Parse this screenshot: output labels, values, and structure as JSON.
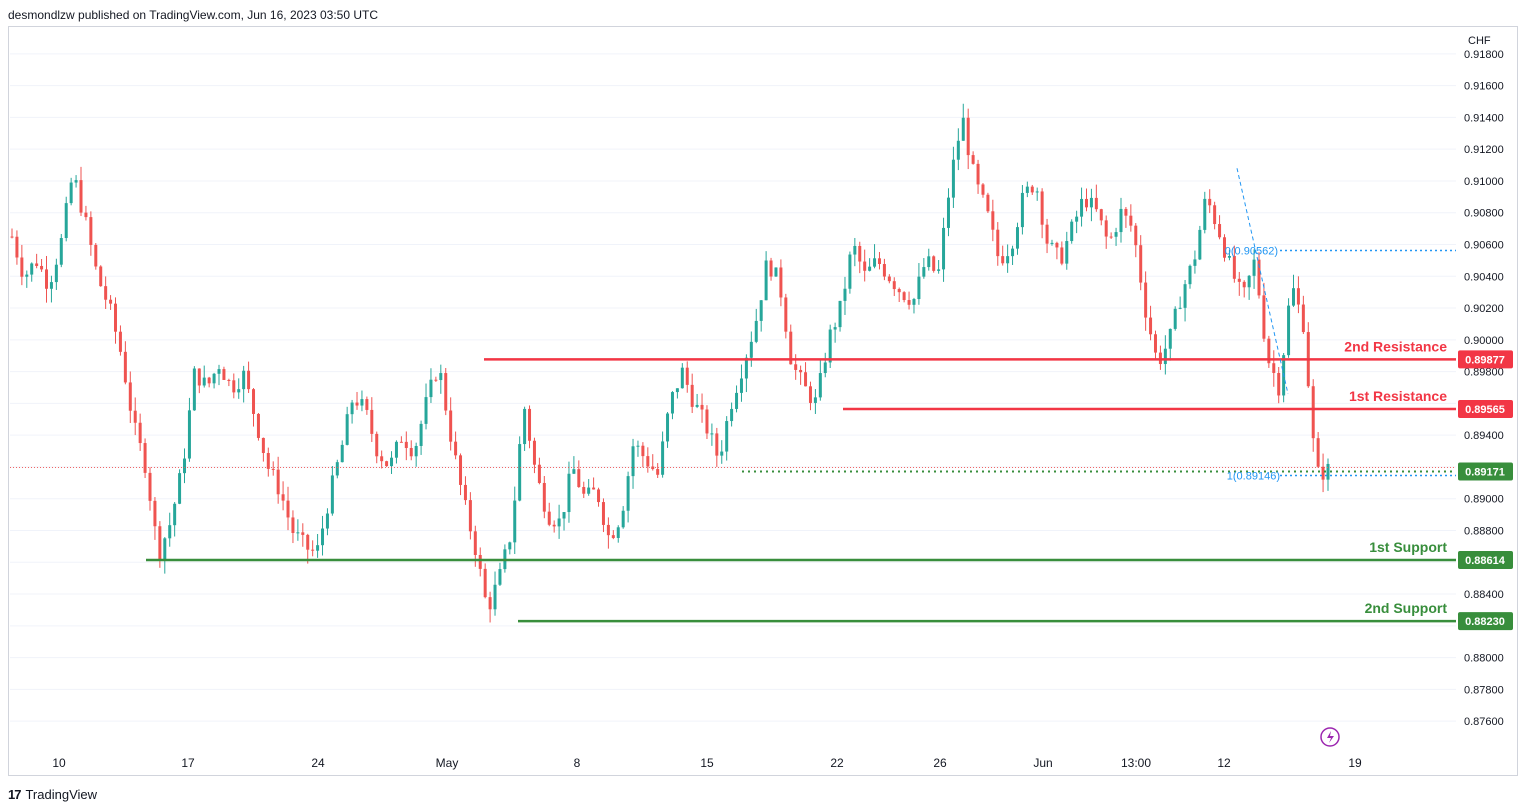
{
  "header": {
    "published_text": "desmondlzw published on TradingView.com, Jun 16, 2023 03:50 UTC"
  },
  "footer": {
    "brand": "TradingView"
  },
  "colors": {
    "up": "#26a69a",
    "down": "#ef5350",
    "resistance": "#f23645",
    "support": "#388e3c",
    "fib": "#2196f3",
    "current_dotted": "#388e3c",
    "grid": "#f0f3fa"
  },
  "chart_data": {
    "type": "candlestick",
    "symbol_currency": "CHF",
    "ylim": [
      0.8745,
      0.9195
    ],
    "y_ticks": [
      "0.91800",
      "0.91600",
      "0.91400",
      "0.91200",
      "0.91000",
      "0.90800",
      "0.90600",
      "0.90400",
      "0.90200",
      "0.90000",
      "0.89800",
      "0.89600",
      "0.89400",
      "0.89200",
      "0.89000",
      "0.88800",
      "0.88600",
      "0.88400",
      "0.88200",
      "0.88000",
      "0.87800",
      "0.87600"
    ],
    "x_labels": [
      "10",
      "17",
      "24",
      "May",
      "8",
      "15",
      "22",
      "26",
      "Jun",
      "13:00",
      "12",
      "19"
    ],
    "levels": [
      {
        "name": "2nd Resistance",
        "value": 0.89877,
        "label": "0.89877",
        "kind": "resistance"
      },
      {
        "name": "1st Resistance",
        "value": 0.89565,
        "label": "0.89565",
        "kind": "resistance"
      },
      {
        "name": "",
        "value": 0.89171,
        "label": "0.89171",
        "kind": "current"
      },
      {
        "name": "1st Support",
        "value": 0.88614,
        "label": "0.88614",
        "kind": "support"
      },
      {
        "name": "2nd Support",
        "value": 0.8823,
        "label": "0.88230",
        "kind": "support"
      }
    ],
    "fib": {
      "top_label": "0(0.90562)",
      "bottom_label": "1(0.89146)",
      "top_value": 0.90562,
      "bottom_value": 0.89146
    },
    "price_path": [
      0.9065,
      0.904,
      0.905,
      0.9035,
      0.906,
      0.9105,
      0.9075,
      0.904,
      0.902,
      0.899,
      0.8945,
      0.892,
      0.8865,
      0.8885,
      0.892,
      0.898,
      0.897,
      0.8985,
      0.897,
      0.8978,
      0.895,
      0.892,
      0.8905,
      0.888,
      0.887,
      0.8865,
      0.89,
      0.893,
      0.8965,
      0.8955,
      0.893,
      0.892,
      0.894,
      0.893,
      0.896,
      0.8985,
      0.894,
      0.89,
      0.887,
      0.883,
      0.885,
      0.888,
      0.896,
      0.8915,
      0.889,
      0.8885,
      0.892,
      0.89,
      0.8905,
      0.8875,
      0.889,
      0.8935,
      0.8925,
      0.8915,
      0.896,
      0.898,
      0.896,
      0.8945,
      0.8925,
      0.896,
      0.8985,
      0.901,
      0.905,
      0.9035,
      0.8985,
      0.897,
      0.896,
      0.9,
      0.902,
      0.906,
      0.904,
      0.905,
      0.904,
      0.903,
      0.9025,
      0.905,
      0.904,
      0.91,
      0.914,
      0.91,
      0.908,
      0.905,
      0.906,
      0.909,
      0.91,
      0.906,
      0.905,
      0.907,
      0.909,
      0.908,
      0.906,
      0.908,
      0.907,
      0.902,
      0.8985,
      0.9,
      0.903,
      0.905,
      0.909,
      0.907,
      0.9045,
      0.9025,
      0.905,
      0.899,
      0.897,
      0.9035,
      0.901,
      0.8915,
      0.8918
    ]
  }
}
